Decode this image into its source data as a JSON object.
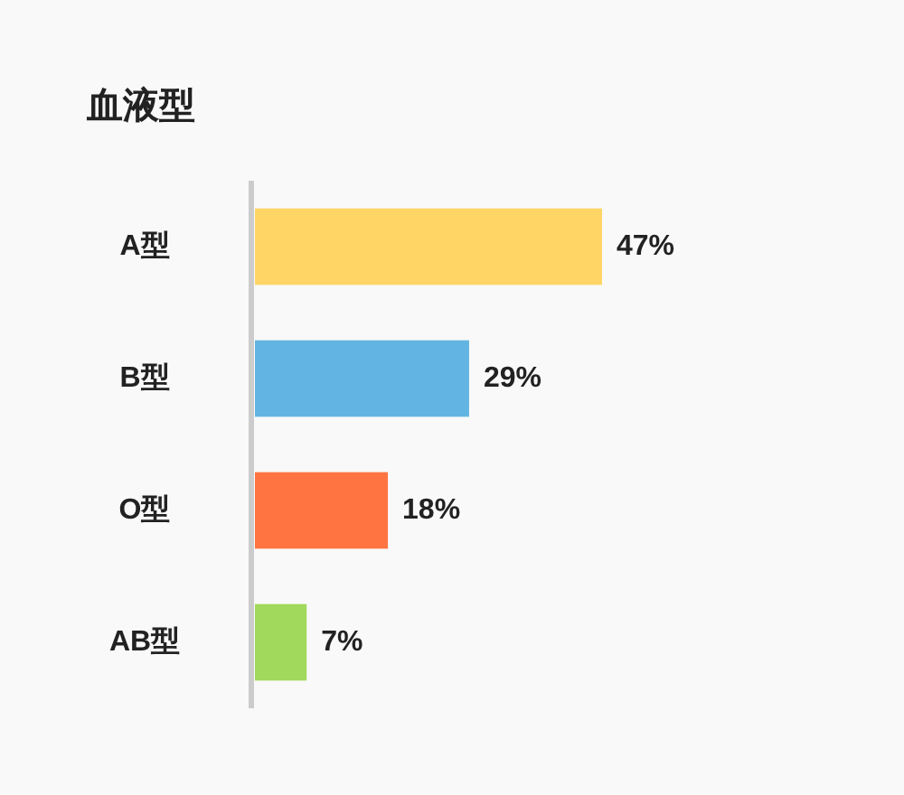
{
  "chart_data": {
    "type": "bar",
    "orientation": "horizontal",
    "title": "血液型",
    "categories": [
      "A型",
      "B型",
      "O型",
      "AB型"
    ],
    "values": [
      47,
      29,
      18,
      7
    ],
    "colors": [
      "#ffd666",
      "#62b5e2",
      "#ff7440",
      "#a0d95b"
    ],
    "value_labels": [
      "47%",
      "29%",
      "18%",
      "7%"
    ]
  }
}
